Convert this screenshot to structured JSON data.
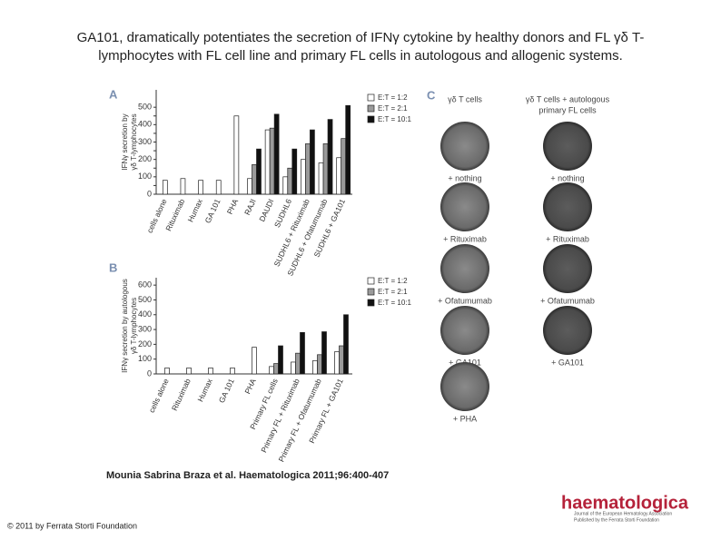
{
  "page": {
    "title_lines": [
      "GA101, dramatically potentiates the secretion of IFNγ cytokine by healthy donors and FL γδ T-",
      "lymphocytes with FL cell line and primary FL cells in autologous and allogenic systems."
    ],
    "citation": "Mounia Sabrina Braza et al. Haematologica 2011;96:400-407",
    "copyright": "© 2011 by Ferrata Storti Foundation",
    "logo": "haematologica",
    "logo_sub": [
      "Journal of the European Hematology Association",
      "Published by the Ferrata Storti Foundation"
    ]
  },
  "panel_c": {
    "panel": "C",
    "columns": [
      "γδ T cells",
      "γδ T cells + autologous",
      "primary FL cells"
    ],
    "left_labels": [
      "+ nothing",
      "+ Rituximab",
      "+ Ofatumumab",
      "+ GA101",
      "+ PHA"
    ],
    "right_labels": [
      "+ nothing",
      "+ Rituximab",
      "+ Ofatumumab",
      "+ GA101"
    ]
  },
  "chart_data": [
    {
      "type": "bar",
      "panel": "A",
      "ylabel": [
        "IFNγ secretion by",
        "γδ T-lymphocytes"
      ],
      "categories": [
        "cells alone",
        "Rituximab",
        "Humax",
        "GA 101",
        "PHA",
        "RAJI",
        "DAUDI",
        "SUDHL6",
        "SUDHL6 + Rituximab",
        "SUDHL6 + Ofatumumab",
        "SUDHL6 + GA101"
      ],
      "series": [
        {
          "name": "E:T = 1:2",
          "color": "#ffffff",
          "values": [
            80,
            90,
            80,
            80,
            450,
            90,
            370,
            100,
            200,
            180,
            210
          ]
        },
        {
          "name": "E:T = 2:1",
          "color": "#9a9a9a",
          "values": [
            null,
            null,
            null,
            null,
            null,
            170,
            380,
            150,
            290,
            290,
            320
          ]
        },
        {
          "name": "E:T = 10:1",
          "color": "#111111",
          "values": [
            null,
            null,
            null,
            null,
            null,
            260,
            460,
            260,
            370,
            430,
            510
          ]
        }
      ],
      "ylim": [
        0,
        600
      ],
      "yticks": [
        0,
        50,
        100,
        150,
        200,
        250,
        300,
        350,
        400,
        450,
        500
      ],
      "legend": "upper right"
    },
    {
      "type": "bar",
      "panel": "B",
      "ylabel": [
        "IFNγ secretion by autologous",
        "γδ T-lymphocytes"
      ],
      "categories": [
        "cells alone",
        "Rituximab",
        "Humax",
        "GA 101",
        "PHA",
        "Primary FL cells",
        "Primary FL + Rituximab",
        "Primary FL + Ofatumumab",
        "Primary FL + GA101"
      ],
      "series": [
        {
          "name": "E:T = 1:2",
          "color": "#ffffff",
          "values": [
            40,
            40,
            40,
            40,
            180,
            50,
            80,
            90,
            150
          ]
        },
        {
          "name": "E:T = 2:1",
          "color": "#9a9a9a",
          "values": [
            null,
            null,
            null,
            null,
            null,
            70,
            140,
            130,
            190
          ]
        },
        {
          "name": "E:T = 10:1",
          "color": "#111111",
          "values": [
            null,
            null,
            null,
            null,
            null,
            190,
            280,
            285,
            400
          ]
        }
      ],
      "ylim": [
        0,
        650
      ],
      "yticks": [
        0,
        100,
        200,
        300,
        400,
        500,
        600
      ],
      "legend": "upper right"
    }
  ]
}
